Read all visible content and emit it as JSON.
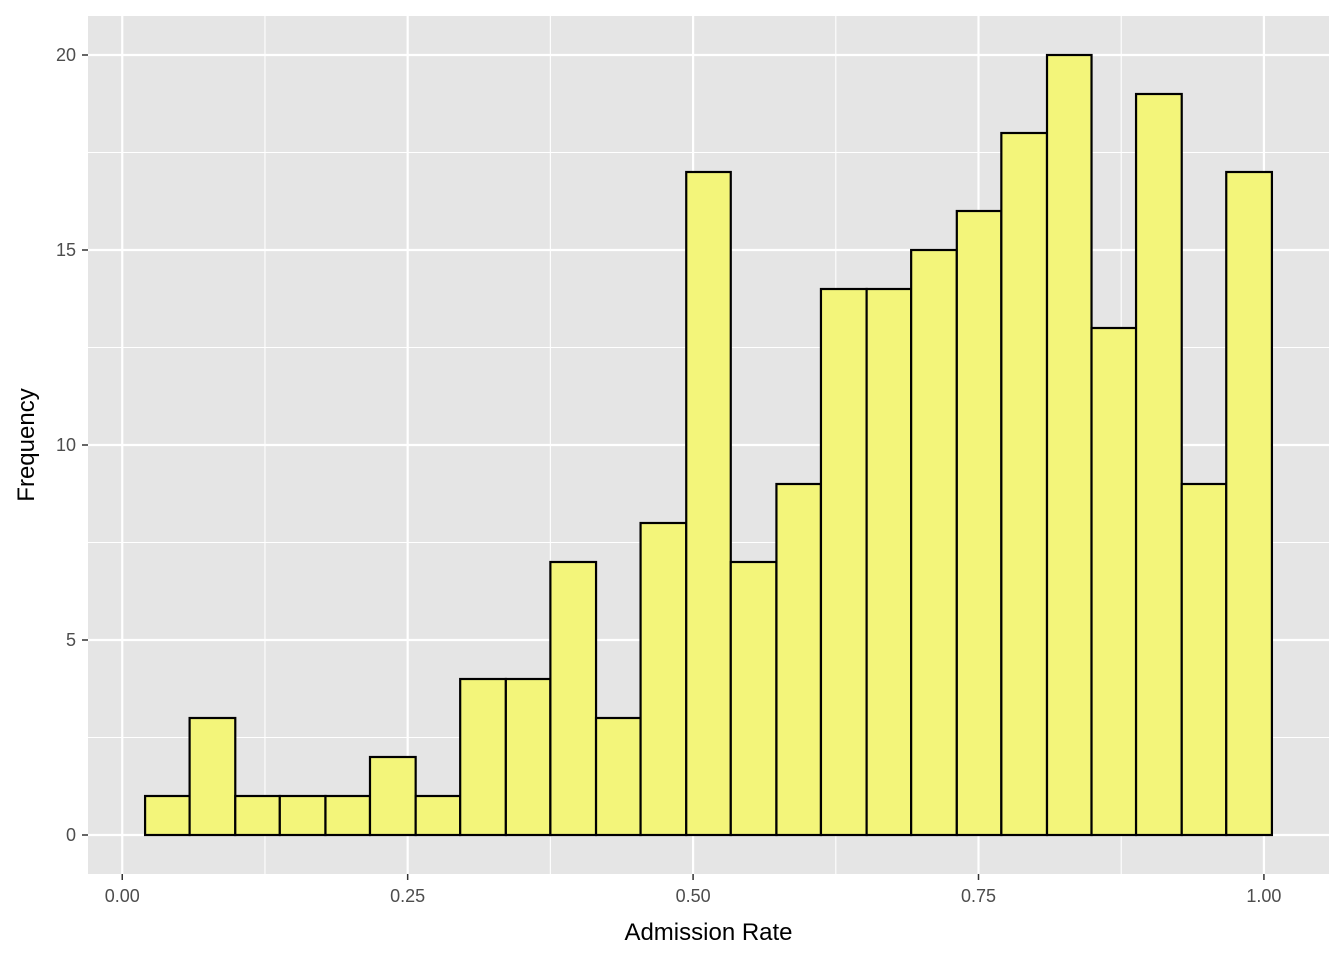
{
  "chart_data": {
    "type": "bar",
    "subtype": "histogram",
    "title": "",
    "xlabel": "Admission Rate",
    "ylabel": "Frequency",
    "bins": [
      {
        "start": 0.02,
        "end": 0.059,
        "count": 1
      },
      {
        "start": 0.059,
        "end": 0.099,
        "count": 3
      },
      {
        "start": 0.099,
        "end": 0.138,
        "count": 1
      },
      {
        "start": 0.138,
        "end": 0.178,
        "count": 1
      },
      {
        "start": 0.178,
        "end": 0.217,
        "count": 1
      },
      {
        "start": 0.217,
        "end": 0.257,
        "count": 2
      },
      {
        "start": 0.257,
        "end": 0.296,
        "count": 1
      },
      {
        "start": 0.296,
        "end": 0.336,
        "count": 4
      },
      {
        "start": 0.336,
        "end": 0.375,
        "count": 4
      },
      {
        "start": 0.375,
        "end": 0.415,
        "count": 7
      },
      {
        "start": 0.415,
        "end": 0.454,
        "count": 3
      },
      {
        "start": 0.454,
        "end": 0.494,
        "count": 8
      },
      {
        "start": 0.494,
        "end": 0.533,
        "count": 17
      },
      {
        "start": 0.533,
        "end": 0.573,
        "count": 7
      },
      {
        "start": 0.573,
        "end": 0.612,
        "count": 9
      },
      {
        "start": 0.612,
        "end": 0.652,
        "count": 14
      },
      {
        "start": 0.652,
        "end": 0.691,
        "count": 14
      },
      {
        "start": 0.691,
        "end": 0.731,
        "count": 15
      },
      {
        "start": 0.731,
        "end": 0.77,
        "count": 16
      },
      {
        "start": 0.77,
        "end": 0.81,
        "count": 18
      },
      {
        "start": 0.81,
        "end": 0.849,
        "count": 20
      },
      {
        "start": 0.849,
        "end": 0.888,
        "count": 13
      },
      {
        "start": 0.888,
        "end": 0.928,
        "count": 19
      },
      {
        "start": 0.928,
        "end": 0.967,
        "count": 9
      },
      {
        "start": 0.967,
        "end": 1.007,
        "count": 17
      }
    ],
    "xlim": [
      -0.03,
      1.057
    ],
    "ylim": [
      -1.0,
      21.0
    ],
    "x_ticks": [
      0.0,
      0.25,
      0.5,
      0.75,
      1.0
    ],
    "x_tick_labels": [
      "0.00",
      "0.25",
      "0.50",
      "0.75",
      "1.00"
    ],
    "y_ticks": [
      0,
      5,
      10,
      15,
      20
    ],
    "y_tick_labels": [
      "0",
      "5",
      "10",
      "15",
      "20"
    ],
    "x_minor_ticks": [
      0.125,
      0.375,
      0.625,
      0.875
    ],
    "y_minor_ticks": [
      2.5,
      7.5,
      12.5,
      17.5
    ],
    "grid": true,
    "legend": "none",
    "colors": {
      "panel_background": "#e5e5e5",
      "grid_line": "#ffffff",
      "bar_fill": "#f3f57a",
      "bar_outline": "#000000",
      "tick_label": "#4d4d4d",
      "tick_mark": "#333333",
      "axis_title": "#000000"
    }
  }
}
